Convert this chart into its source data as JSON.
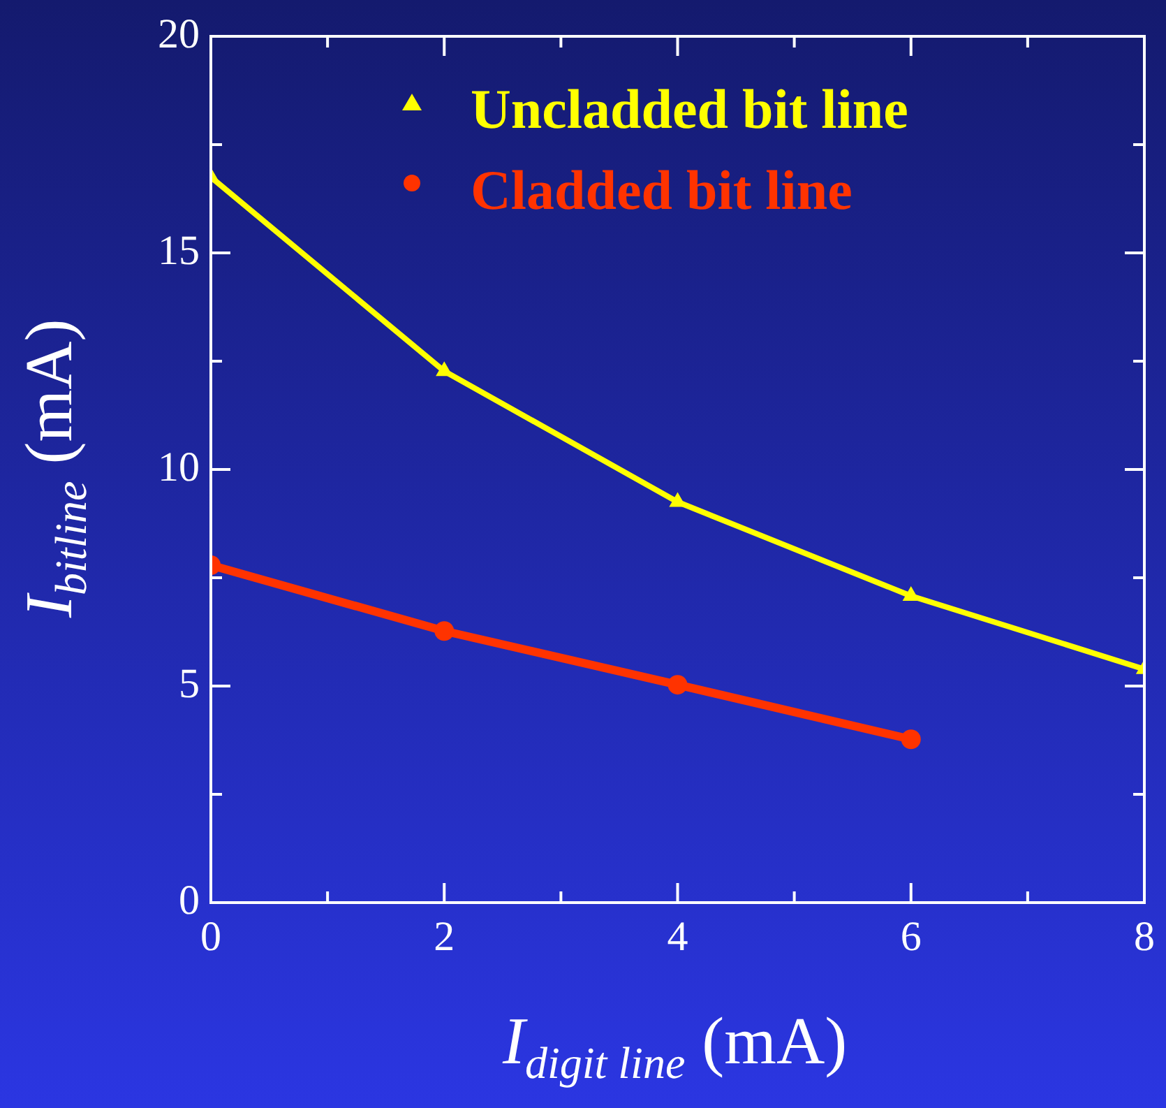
{
  "chart_data": {
    "type": "line",
    "xlabel": "I$_{digit line}$ (mA)",
    "ylabel": "I$_{bitline}$ (mA)",
    "xlim": [
      0,
      8
    ],
    "ylim": [
      0,
      20
    ],
    "xticks": [
      0,
      {
        "value": 1,
        "label": null
      },
      2,
      {
        "value": 3,
        "label": null
      },
      4,
      {
        "value": 5,
        "label": null
      },
      6,
      {
        "value": 7,
        "label": null
      },
      8
    ],
    "yticks": [
      0,
      {
        "value": 2.5,
        "label": null
      },
      5,
      {
        "value": 7.5,
        "label": null
      },
      10,
      {
        "value": 12.5,
        "label": null
      },
      15,
      {
        "value": 17.5,
        "label": null
      },
      20
    ],
    "grid": false,
    "legend": "top",
    "series": [
      {
        "name": "Uncladded bit line",
        "color": "#ffff00",
        "marker": "triangle",
        "x": [
          0,
          2,
          4,
          6,
          8
        ],
        "values": [
          16.75,
          12.27,
          9.25,
          7.08,
          5.39
        ]
      },
      {
        "name": "Cladded bit line",
        "color": "#ff3300",
        "marker": "circle",
        "x": [
          0,
          2,
          4,
          6
        ],
        "values": [
          7.79,
          6.27,
          5.03,
          3.77
        ]
      }
    ]
  }
}
